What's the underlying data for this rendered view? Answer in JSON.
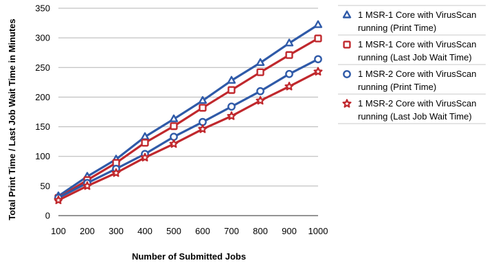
{
  "chart_data": {
    "type": "line",
    "title": "",
    "xlabel": "Number of Submitted Jobs",
    "ylabel": "Total Print Time / Last Job Wait Time in Minutes",
    "x": [
      100,
      200,
      300,
      400,
      500,
      600,
      700,
      800,
      900,
      1000
    ],
    "ylim": [
      0,
      350
    ],
    "yticks": [
      0,
      50,
      100,
      150,
      200,
      250,
      300,
      350
    ],
    "grid": true,
    "legend_position": "right",
    "series": [
      {
        "name_lines": [
          "1 MSR-1 Core with VirusScan",
          "running (Print Time)"
        ],
        "color": "#2f5aa8",
        "marker": "triangle",
        "values": [
          33,
          66,
          95,
          133,
          163,
          194,
          228,
          258,
          291,
          322
        ]
      },
      {
        "name_lines": [
          "1 MSR-1 Core with VirusScan",
          "running (Last Job Wait Time)"
        ],
        "color": "#c0282d",
        "marker": "square",
        "values": [
          30,
          60,
          89,
          123,
          151,
          182,
          212,
          242,
          271,
          299
        ]
      },
      {
        "name_lines": [
          "1 MSR-2 Core with VirusScan",
          "running (Print Time)"
        ],
        "color": "#2f5aa8",
        "marker": "circle",
        "values": [
          30,
          55,
          79,
          104,
          133,
          158,
          184,
          210,
          239,
          264
        ]
      },
      {
        "name_lines": [
          "1 MSR-2 Core with VirusScan",
          "running (Last Job Wait Time)"
        ],
        "color": "#c0282d",
        "marker": "star",
        "values": [
          26,
          50,
          72,
          98,
          121,
          146,
          168,
          194,
          218,
          243
        ]
      }
    ]
  }
}
